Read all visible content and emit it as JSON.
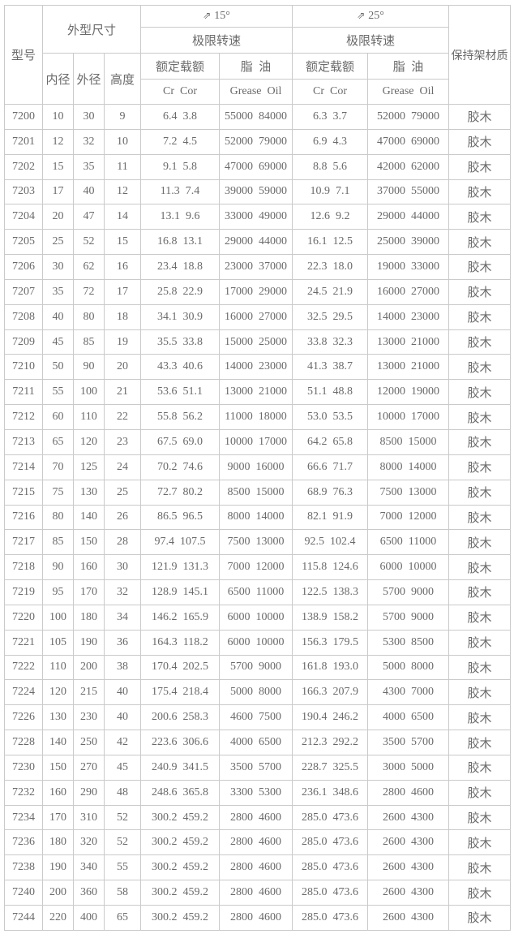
{
  "page": {
    "background": "#ffffff",
    "border_color": "#cacaca",
    "text_color": "#6a6a6a"
  },
  "table": {
    "header": {
      "model": "型号",
      "dimensions": "外型尺寸",
      "inner_diameter": "内径",
      "outer_diameter": "外径",
      "height": "高度",
      "angle_icon": "⇗",
      "angle15": "15°",
      "angle25": "25°",
      "limit_speed": "极限转速",
      "rated_load": "额定载额",
      "grease_oil_cn": "脂  油",
      "cr_cor": "Cr  Cor",
      "grease_oil_en": "Grease  Oil",
      "cage_material": "保持架材质"
    },
    "rows": [
      [
        "7200",
        "10",
        "30",
        "9",
        "6.4  3.8",
        "55000  84000",
        "6.3  3.7",
        "52000  79000",
        "胶木"
      ],
      [
        "7201",
        "12",
        "32",
        "10",
        "7.2  4.5",
        "52000  79000",
        "6.9  4.3",
        "47000  69000",
        "胶木"
      ],
      [
        "7202",
        "15",
        "35",
        "11",
        "9.1  5.8",
        "47000  69000",
        "8.8  5.6",
        "42000  62000",
        "胶木"
      ],
      [
        "7203",
        "17",
        "40",
        "12",
        "11.3  7.4",
        "39000  59000",
        "10.9  7.1",
        "37000  55000",
        "胶木"
      ],
      [
        "7204",
        "20",
        "47",
        "14",
        "13.1  9.6",
        "33000  49000",
        "12.6  9.2",
        "29000  44000",
        "胶木"
      ],
      [
        "7205",
        "25",
        "52",
        "15",
        "16.8  13.1",
        "29000  44000",
        "16.1  12.5",
        "25000  39000",
        "胶木"
      ],
      [
        "7206",
        "30",
        "62",
        "16",
        "23.4  18.8",
        "23000  37000",
        "22.3  18.0",
        "19000  33000",
        "胶木"
      ],
      [
        "7207",
        "35",
        "72",
        "17",
        "25.8  22.9",
        "17000  29000",
        "24.5  21.9",
        "16000  27000",
        "胶木"
      ],
      [
        "7208",
        "40",
        "80",
        "18",
        "34.1  30.9",
        "16000  27000",
        "32.5  29.5",
        "14000  23000",
        "胶木"
      ],
      [
        "7209",
        "45",
        "85",
        "19",
        "35.5  33.8",
        "15000  25000",
        "33.8  32.3",
        "13000  21000",
        "胶木"
      ],
      [
        "7210",
        "50",
        "90",
        "20",
        "43.3  40.6",
        "14000  23000",
        "41.3  38.7",
        "13000  21000",
        "胶木"
      ],
      [
        "7211",
        "55",
        "100",
        "21",
        "53.6  51.1",
        "13000  21000",
        "51.1  48.8",
        "12000  19000",
        "胶木"
      ],
      [
        "7212",
        "60",
        "110",
        "22",
        "55.8  56.2",
        "11000  18000",
        "53.0  53.5",
        "10000  17000",
        "胶木"
      ],
      [
        "7213",
        "65",
        "120",
        "23",
        "67.5  69.0",
        "10000  17000",
        "64.2  65.8",
        "8500  15000",
        "胶木"
      ],
      [
        "7214",
        "70",
        "125",
        "24",
        "70.2  74.6",
        "9000  16000",
        "66.6  71.7",
        "8000  14000",
        "胶木"
      ],
      [
        "7215",
        "75",
        "130",
        "25",
        "72.7  80.2",
        "8500  15000",
        "68.9  76.3",
        "7500  13000",
        "胶木"
      ],
      [
        "7216",
        "80",
        "140",
        "26",
        "86.5  96.5",
        "8000  14000",
        "82.1  91.9",
        "7000  12000",
        "胶木"
      ],
      [
        "7217",
        "85",
        "150",
        "28",
        "97.4  107.5",
        "7500  13000",
        "92.5  102.4",
        "6500  11000",
        "胶木"
      ],
      [
        "7218",
        "90",
        "160",
        "30",
        "121.9  131.3",
        "7000  12000",
        "115.8  124.6",
        "6000  10000",
        "胶木"
      ],
      [
        "7219",
        "95",
        "170",
        "32",
        "128.9  145.1",
        "6500  11000",
        "122.5  138.3",
        "5700  9000",
        "胶木"
      ],
      [
        "7220",
        "100",
        "180",
        "34",
        "146.2  165.9",
        "6000  10000",
        "138.9  158.2",
        "5700  9000",
        "胶木"
      ],
      [
        "7221",
        "105",
        "190",
        "36",
        "164.3  118.2",
        "6000  10000",
        "156.3  179.5",
        "5300  8500",
        "胶木"
      ],
      [
        "7222",
        "110",
        "200",
        "38",
        "170.4  202.5",
        "5700  9000",
        "161.8  193.0",
        "5000  8000",
        "胶木"
      ],
      [
        "7224",
        "120",
        "215",
        "40",
        "175.4  218.4",
        "5000  8000",
        "166.3  207.9",
        "4300  7000",
        "胶木"
      ],
      [
        "7226",
        "130",
        "230",
        "40",
        "200.6  258.3",
        "4600  7500",
        "190.4  246.2",
        "4000  6500",
        "胶木"
      ],
      [
        "7228",
        "140",
        "250",
        "42",
        "223.6  306.6",
        "4000  6500",
        "212.3  292.2",
        "3500  5700",
        "胶木"
      ],
      [
        "7230",
        "150",
        "270",
        "45",
        "240.9  341.5",
        "3500  5700",
        "228.7  325.5",
        "3000  5000",
        "胶木"
      ],
      [
        "7232",
        "160",
        "290",
        "48",
        "248.6  365.8",
        "3300  5300",
        "236.1  348.6",
        "2800  4600",
        "胶木"
      ],
      [
        "7234",
        "170",
        "310",
        "52",
        "300.2  459.2",
        "2800  4600",
        "285.0  473.6",
        "2600  4300",
        "胶木"
      ],
      [
        "7236",
        "180",
        "320",
        "52",
        "300.2  459.2",
        "2800  4600",
        "285.0  473.6",
        "2600  4300",
        "胶木"
      ],
      [
        "7238",
        "190",
        "340",
        "55",
        "300.2  459.2",
        "2800  4600",
        "285.0  473.6",
        "2600  4300",
        "胶木"
      ],
      [
        "7240",
        "200",
        "360",
        "58",
        "300.2  459.2",
        "2800  4600",
        "285.0  473.6",
        "2600  4300",
        "胶木"
      ],
      [
        "7244",
        "220",
        "400",
        "65",
        "300.2  459.2",
        "2800  4600",
        "285.0  473.6",
        "2600  4300",
        "胶木"
      ]
    ]
  }
}
